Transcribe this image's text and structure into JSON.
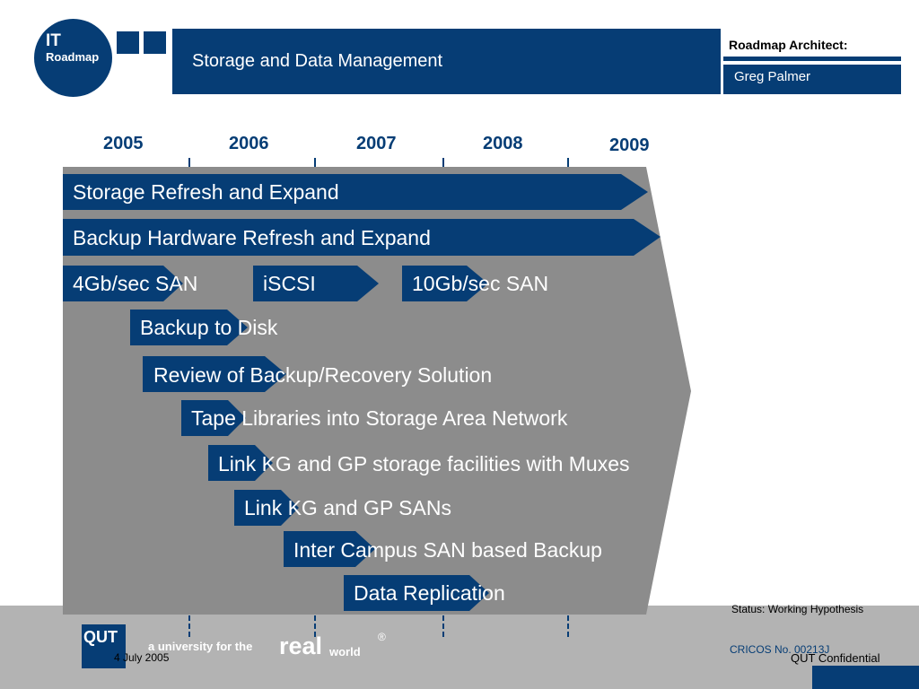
{
  "header": {
    "logo_line1": "IT",
    "logo_line2": "Roadmap",
    "title": "Storage and Data Management",
    "architect_label": "Roadmap Architect:",
    "architect_name": "Greg Palmer"
  },
  "years": [
    "2005",
    "2006",
    "2007",
    "2008",
    "2009"
  ],
  "items": [
    "Storage Refresh and Expand",
    "Backup Hardware Refresh and Expand",
    "4Gb/sec SAN",
    "iSCSI",
    "10Gb/sec SAN",
    "Backup to Disk",
    "Review of Backup/Recovery Solution",
    "Tape Libraries into Storage Area Network",
    "Link KG and GP  storage facilities with Muxes",
    "Link KG and GP SANs",
    "Inter Campus SAN based Backup",
    "Data Replication"
  ],
  "footer": {
    "status": "Status: Working Hypothesis",
    "logo": "QUT",
    "tagline_a": "a university for the",
    "tagline_b": "real",
    "tagline_c": "world",
    "registered": "®",
    "date": "4 July 2005",
    "cricos": "CRICOS No. 00213J",
    "confidential": "QUT Confidential"
  },
  "colors": {
    "navy": "#063d75",
    "grey_panel": "#8c8c8c",
    "footer_grey": "#b3b3b3"
  }
}
